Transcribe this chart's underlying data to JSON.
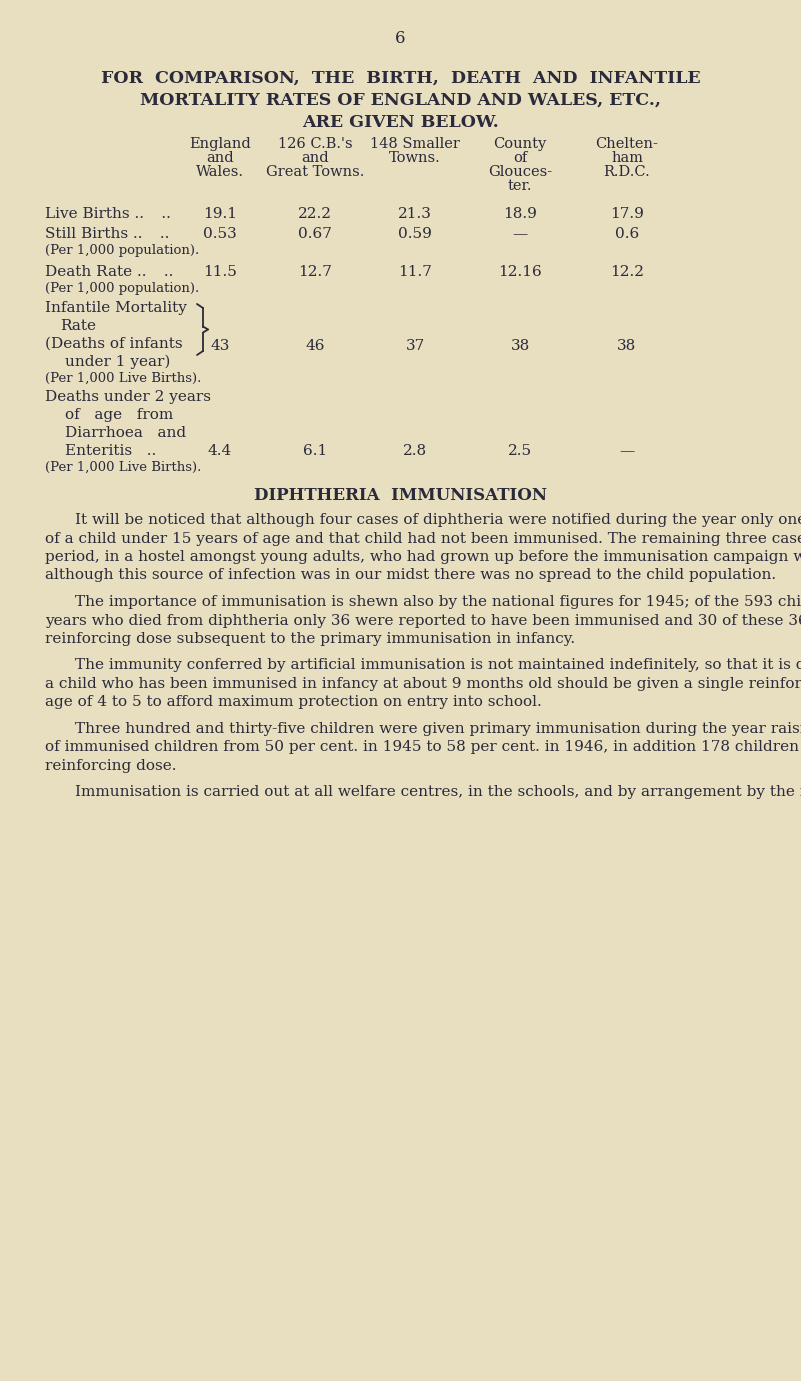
{
  "bg_color": "#e8dfc0",
  "text_color": "#2a2a3a",
  "page_number": "6",
  "fig_w": 8.01,
  "fig_h": 13.81,
  "dpi": 100
}
